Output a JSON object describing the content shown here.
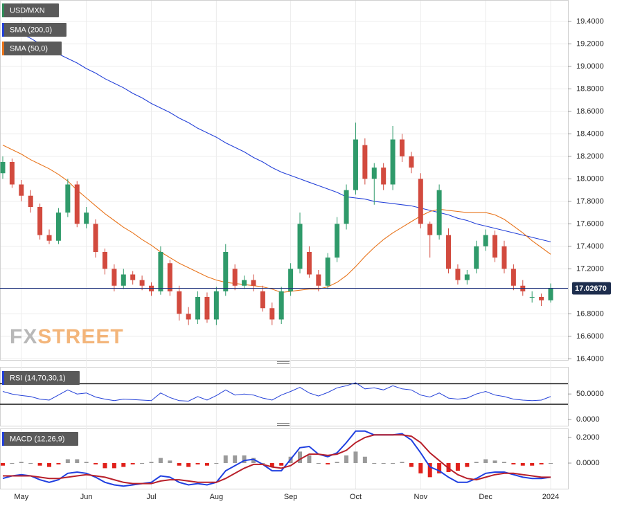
{
  "chart_data": [
    {
      "type": "candlestick",
      "name": "USD/MXN",
      "categories": [
        null,
        null,
        "May",
        null,
        null,
        null,
        null,
        null,
        null,
        "Jun",
        null,
        null,
        null,
        null,
        null,
        null,
        "Jul",
        null,
        null,
        null,
        null,
        null,
        null,
        "Aug",
        null,
        null,
        null,
        null,
        null,
        null,
        null,
        "Sep",
        null,
        null,
        null,
        null,
        null,
        null,
        "Oct",
        null,
        null,
        null,
        null,
        null,
        null,
        "Nov",
        null,
        null,
        null,
        null,
        null,
        null,
        "Dec",
        null,
        null,
        null,
        null,
        null,
        null,
        "2024"
      ],
      "open": [
        18.05,
        18.15,
        17.95,
        17.85,
        17.75,
        17.5,
        17.45,
        17.7,
        17.95,
        17.6,
        17.6,
        17.35,
        17.2,
        17.05,
        17.15,
        17.1,
        17.05,
        17.0,
        17.25,
        17.0,
        16.8,
        16.75,
        16.95,
        16.75,
        17.0,
        17.2,
        17.05,
        17.1,
        17.0,
        16.85,
        16.75,
        17.0,
        17.2,
        17.35,
        17.15,
        17.05,
        17.3,
        17.6,
        17.9,
        18.3,
        18.0,
        18.1,
        17.95,
        18.35,
        18.2,
        18.0,
        17.6,
        17.5,
        17.5,
        17.2,
        17.1,
        17.2,
        17.4,
        17.5,
        17.4,
        17.2,
        17.05,
        16.95,
        16.95,
        16.92
      ],
      "high": [
        18.2,
        18.18,
        17.99,
        17.9,
        17.78,
        17.55,
        17.74,
        18.0,
        17.98,
        17.75,
        17.64,
        17.38,
        17.24,
        17.2,
        17.18,
        17.14,
        17.08,
        17.4,
        17.28,
        17.05,
        16.86,
        17.0,
        16.99,
        17.04,
        17.42,
        17.24,
        17.14,
        17.15,
        17.05,
        16.9,
        17.04,
        17.25,
        17.7,
        17.4,
        17.19,
        17.34,
        17.66,
        17.95,
        18.5,
        18.36,
        18.14,
        18.14,
        18.47,
        18.4,
        18.24,
        18.05,
        17.62,
        17.95,
        17.56,
        17.24,
        17.19,
        17.45,
        17.55,
        17.54,
        17.45,
        17.24,
        17.1,
        17.0,
        16.98,
        17.07
      ],
      "low": [
        18.0,
        17.92,
        17.8,
        17.7,
        17.46,
        17.42,
        17.42,
        17.66,
        17.57,
        17.56,
        17.3,
        17.15,
        17.0,
        17.02,
        17.06,
        17.01,
        16.96,
        16.97,
        16.96,
        16.74,
        16.7,
        16.71,
        16.72,
        16.7,
        16.96,
        17.01,
        17.02,
        17.0,
        16.82,
        16.7,
        16.71,
        16.96,
        17.16,
        17.12,
        17.0,
        17.02,
        17.26,
        17.55,
        17.86,
        17.95,
        17.77,
        17.9,
        17.9,
        18.15,
        18.05,
        17.56,
        17.3,
        17.46,
        17.16,
        17.06,
        17.06,
        17.16,
        17.36,
        17.26,
        17.16,
        17.01,
        16.96,
        16.9,
        16.87,
        16.9
      ],
      "close": [
        18.15,
        17.95,
        17.85,
        17.75,
        17.5,
        17.45,
        17.7,
        17.95,
        17.6,
        17.7,
        17.35,
        17.2,
        17.05,
        17.15,
        17.1,
        17.05,
        17.0,
        17.35,
        17.0,
        16.8,
        16.75,
        16.95,
        16.75,
        17.0,
        17.35,
        17.05,
        17.1,
        17.05,
        16.85,
        16.75,
        17.0,
        17.2,
        17.6,
        17.15,
        17.05,
        17.3,
        17.6,
        17.9,
        18.35,
        18.0,
        18.1,
        17.95,
        18.35,
        18.2,
        18.1,
        17.6,
        17.5,
        17.9,
        17.2,
        17.1,
        17.15,
        17.4,
        17.5,
        17.3,
        17.2,
        17.05,
        17.0,
        16.95,
        16.92,
        17.03
      ],
      "up_color": "#2f9a6a",
      "down_color": "#d24a3e",
      "overlays": [
        {
          "name": "SMA (200,0)",
          "color": "#2340d8",
          "values": [
            19.38,
            19.33,
            19.29,
            19.25,
            19.2,
            19.16,
            19.11,
            19.07,
            19.03,
            18.98,
            18.94,
            18.89,
            18.85,
            18.81,
            18.76,
            18.72,
            18.67,
            18.63,
            18.59,
            18.54,
            18.5,
            18.45,
            18.41,
            18.37,
            18.32,
            18.28,
            18.24,
            18.19,
            18.15,
            18.1,
            18.06,
            18.03,
            18.0,
            17.97,
            17.94,
            17.91,
            17.88,
            17.84,
            17.83,
            17.82,
            17.8,
            17.79,
            17.78,
            17.77,
            17.76,
            17.74,
            17.72,
            17.7,
            17.68,
            17.65,
            17.63,
            17.6,
            17.58,
            17.56,
            17.54,
            17.52,
            17.5,
            17.48,
            17.46,
            17.44
          ]
        },
        {
          "name": "SMA (50,0)",
          "color": "#e8731a",
          "values": [
            18.3,
            18.26,
            18.22,
            18.17,
            18.13,
            18.09,
            18.04,
            17.98,
            17.9,
            17.83,
            17.76,
            17.69,
            17.63,
            17.57,
            17.52,
            17.46,
            17.41,
            17.35,
            17.3,
            17.25,
            17.21,
            17.17,
            17.13,
            17.1,
            17.08,
            17.07,
            17.06,
            17.05,
            17.04,
            17.02,
            16.99,
            17.0,
            17.01,
            17.02,
            17.02,
            17.04,
            17.08,
            17.14,
            17.22,
            17.31,
            17.39,
            17.46,
            17.52,
            17.57,
            17.62,
            17.67,
            17.71,
            17.73,
            17.72,
            17.71,
            17.7,
            17.7,
            17.7,
            17.68,
            17.64,
            17.58,
            17.52,
            17.45,
            17.39,
            17.33
          ]
        }
      ],
      "last_price": {
        "value": 17.0267,
        "label": "17.02670"
      },
      "watermark": [
        "FX",
        "STREET"
      ],
      "ylim": [
        16.39,
        19.59
      ],
      "yticks": [
        {
          "value": 16.4,
          "label": "16.4000"
        },
        {
          "value": 16.6,
          "label": "16.6000"
        },
        {
          "value": 16.8,
          "label": "16.8000"
        },
        {
          "value": 17.2,
          "label": "17.2000"
        },
        {
          "value": 17.4,
          "label": "17.4000"
        },
        {
          "value": 17.6,
          "label": "17.6000"
        },
        {
          "value": 17.8,
          "label": "17.8000"
        },
        {
          "value": 18,
          "label": "18.0000"
        },
        {
          "value": 18.2,
          "label": "18.2000"
        },
        {
          "value": 18.4,
          "label": "18.4000"
        },
        {
          "value": 18.6,
          "label": "18.6000"
        },
        {
          "value": 18.8,
          "label": "18.8000"
        },
        {
          "value": 19,
          "label": "19.0000"
        },
        {
          "value": 19.2,
          "label": "19.2000"
        },
        {
          "value": 19.4,
          "label": "19.4000"
        }
      ],
      "grid": true
    },
    {
      "type": "rsi",
      "name": "RSI (14,70,30,1)",
      "color": "#2340d8",
      "values": [
        55,
        50,
        47,
        45,
        40,
        38,
        48,
        58,
        50,
        52,
        44,
        40,
        37,
        40,
        39,
        38,
        37,
        52,
        43,
        37,
        36,
        45,
        38,
        47,
        58,
        48,
        50,
        48,
        42,
        38,
        48,
        55,
        63,
        52,
        46,
        53,
        62,
        66,
        72,
        60,
        62,
        58,
        66,
        60,
        58,
        48,
        44,
        52,
        42,
        40,
        42,
        50,
        55,
        48,
        45,
        40,
        38,
        37,
        38,
        45
      ],
      "levels": [
        70,
        30
      ],
      "ylim": [
        -12,
        103
      ],
      "yticks": [
        {
          "value": 0,
          "label": "0.0000"
        },
        {
          "value": 50,
          "label": "50.0000"
        }
      ]
    },
    {
      "type": "macd",
      "name": "MACD (12,26,9)",
      "series": [
        {
          "color": "#1f3fe0",
          "values": [
            -0.12,
            -0.1,
            -0.09,
            -0.1,
            -0.13,
            -0.15,
            -0.13,
            -0.08,
            -0.07,
            -0.08,
            -0.11,
            -0.15,
            -0.17,
            -0.18,
            -0.17,
            -0.16,
            -0.15,
            -0.1,
            -0.11,
            -0.15,
            -0.17,
            -0.16,
            -0.17,
            -0.15,
            -0.06,
            -0.02,
            0.02,
            0.03,
            -0.01,
            -0.06,
            -0.06,
            0.03,
            0.12,
            0.13,
            0.07,
            0.05,
            0.08,
            0.16,
            0.25,
            0.25,
            0.22,
            0.22,
            0.22,
            0.23,
            0.18,
            0.08,
            -0.03,
            -0.06,
            -0.11,
            -0.15,
            -0.15,
            -0.12,
            -0.08,
            -0.07,
            -0.07,
            -0.09,
            -0.11,
            -0.12,
            -0.12,
            -0.11
          ]
        },
        {
          "color": "#b8202a",
          "values": [
            -0.1,
            -0.1,
            -0.1,
            -0.1,
            -0.11,
            -0.12,
            -0.12,
            -0.11,
            -0.1,
            -0.09,
            -0.1,
            -0.11,
            -0.13,
            -0.15,
            -0.16,
            -0.16,
            -0.16,
            -0.14,
            -0.13,
            -0.13,
            -0.14,
            -0.15,
            -0.15,
            -0.15,
            -0.12,
            -0.08,
            -0.04,
            -0.01,
            -0.01,
            -0.03,
            -0.04,
            -0.02,
            0.03,
            0.07,
            0.07,
            0.06,
            0.07,
            0.1,
            0.16,
            0.2,
            0.22,
            0.22,
            0.22,
            0.22,
            0.21,
            0.16,
            0.08,
            0.02,
            -0.04,
            -0.09,
            -0.12,
            -0.13,
            -0.11,
            -0.09,
            -0.08,
            -0.08,
            -0.09,
            -0.1,
            -0.11,
            -0.11
          ]
        }
      ],
      "histogram": {
        "up_color": "#9a9a9a",
        "down_color": "#e0201a",
        "values": [
          -0.02,
          0,
          0.01,
          0,
          -0.02,
          -0.03,
          -0.01,
          0.03,
          0.03,
          0.01,
          -0.01,
          -0.04,
          -0.04,
          -0.03,
          -0.01,
          0,
          0.01,
          0.04,
          0.02,
          -0.02,
          -0.03,
          -0.01,
          -0.02,
          0,
          0.06,
          0.06,
          0.06,
          0.04,
          0,
          -0.03,
          -0.02,
          0.05,
          0.09,
          0.06,
          0,
          -0.01,
          0.01,
          0.06,
          0.09,
          0.05,
          0,
          0,
          0,
          0.01,
          -0.03,
          -0.08,
          -0.11,
          -0.08,
          -0.07,
          -0.06,
          -0.03,
          0.01,
          0.03,
          0.02,
          0.01,
          -0.01,
          -0.02,
          -0.02,
          -0.01,
          0
        ]
      },
      "ylim": [
        -0.2,
        0.265
      ],
      "yticks": [
        {
          "value": 0,
          "label": "0.0000"
        },
        {
          "value": 0.2,
          "label": "0.2000"
        }
      ]
    }
  ]
}
